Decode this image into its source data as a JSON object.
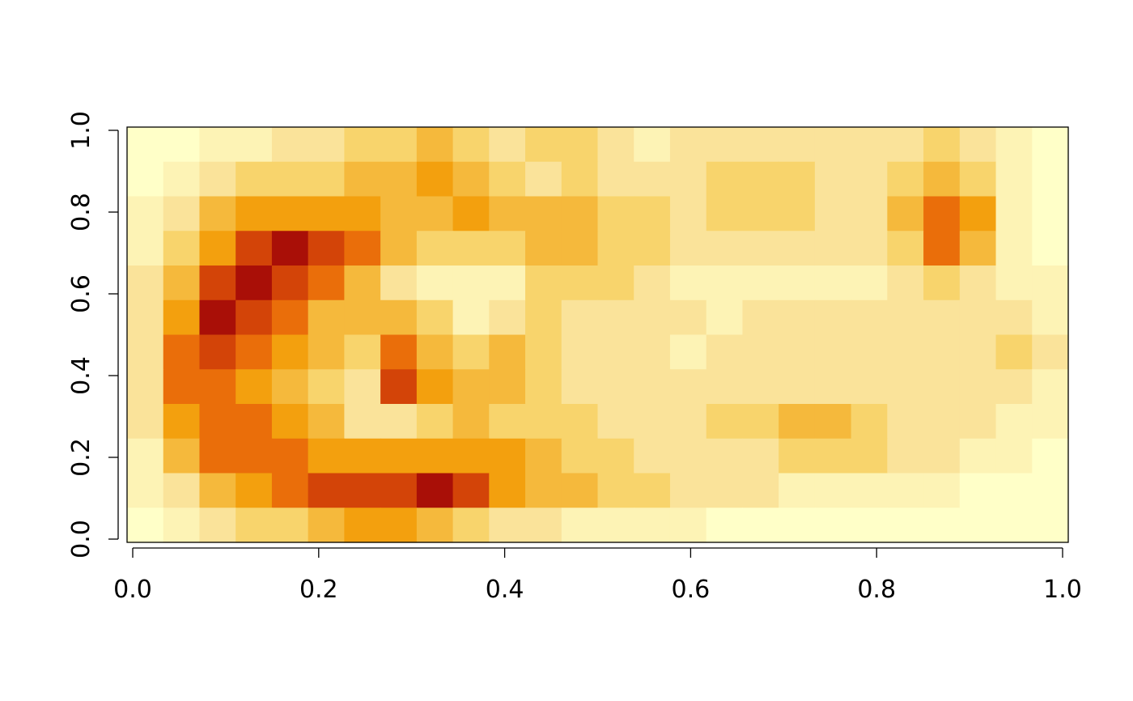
{
  "chart_data": {
    "type": "heatmap",
    "title": "",
    "xlabel": "",
    "ylabel": "",
    "xlim": [
      0,
      1
    ],
    "ylim": [
      0,
      1
    ],
    "x_ticks": [
      {
        "value": 0.0,
        "label": "0.0"
      },
      {
        "value": 0.2,
        "label": "0.2"
      },
      {
        "value": 0.4,
        "label": "0.4"
      },
      {
        "value": 0.6,
        "label": "0.6"
      },
      {
        "value": 0.8,
        "label": "0.8"
      },
      {
        "value": 1.0,
        "label": "1.0"
      }
    ],
    "y_ticks": [
      {
        "value": 0.0,
        "label": "0.0"
      },
      {
        "value": 0.2,
        "label": "0.2"
      },
      {
        "value": 0.4,
        "label": "0.4"
      },
      {
        "value": 0.6,
        "label": "0.6"
      },
      {
        "value": 0.8,
        "label": "0.8"
      },
      {
        "value": 1.0,
        "label": "1.0"
      }
    ],
    "colorscale": [
      "#FFFFC8",
      "#FDF3B5",
      "#FAE39A",
      "#F8D46C",
      "#F5B93C",
      "#F3A00E",
      "#EA6E0A",
      "#D34408",
      "#A90F07",
      "#7D0025"
    ],
    "value_range": [
      0,
      1
    ],
    "grid": false,
    "legend": "none",
    "nx": 26,
    "ny": 12,
    "values": [
      [
        0.05,
        0.05,
        0.1,
        0.15,
        0.2,
        0.25,
        0.3,
        0.35,
        0.4,
        0.3,
        0.25,
        0.3,
        0.3,
        0.2,
        0.15,
        0.2,
        0.2,
        0.2,
        0.2,
        0.25,
        0.25,
        0.25,
        0.3,
        0.25,
        0.1,
        0.05
      ],
      [
        0.05,
        0.1,
        0.2,
        0.3,
        0.3,
        0.3,
        0.4,
        0.45,
        0.5,
        0.45,
        0.3,
        0.25,
        0.3,
        0.25,
        0.2,
        0.2,
        0.3,
        0.35,
        0.3,
        0.25,
        0.25,
        0.35,
        0.4,
        0.3,
        0.1,
        0.05
      ],
      [
        0.1,
        0.2,
        0.4,
        0.5,
        0.5,
        0.55,
        0.55,
        0.45,
        0.45,
        0.5,
        0.45,
        0.4,
        0.4,
        0.35,
        0.3,
        0.25,
        0.35,
        0.3,
        0.35,
        0.25,
        0.2,
        0.4,
        0.6,
        0.5,
        0.15,
        0.05
      ],
      [
        0.15,
        0.35,
        0.55,
        0.7,
        0.8,
        0.7,
        0.6,
        0.4,
        0.3,
        0.3,
        0.35,
        0.45,
        0.45,
        0.35,
        0.3,
        0.2,
        0.2,
        0.2,
        0.2,
        0.2,
        0.25,
        0.3,
        0.65,
        0.4,
        0.1,
        0.05
      ],
      [
        0.2,
        0.45,
        0.7,
        0.85,
        0.7,
        0.6,
        0.45,
        0.25,
        0.15,
        0.1,
        0.15,
        0.35,
        0.35,
        0.35,
        0.2,
        0.15,
        0.1,
        0.15,
        0.15,
        0.15,
        0.15,
        0.25,
        0.3,
        0.2,
        0.1,
        0.1
      ],
      [
        0.25,
        0.55,
        0.8,
        0.75,
        0.6,
        0.45,
        0.4,
        0.4,
        0.3,
        0.15,
        0.2,
        0.3,
        0.25,
        0.25,
        0.2,
        0.2,
        0.15,
        0.25,
        0.25,
        0.2,
        0.2,
        0.2,
        0.2,
        0.2,
        0.2,
        0.15
      ],
      [
        0.25,
        0.6,
        0.7,
        0.6,
        0.5,
        0.4,
        0.3,
        0.6,
        0.4,
        0.35,
        0.45,
        0.35,
        0.25,
        0.25,
        0.2,
        0.15,
        0.2,
        0.2,
        0.2,
        0.2,
        0.2,
        0.2,
        0.2,
        0.25,
        0.35,
        0.25
      ],
      [
        0.25,
        0.6,
        0.65,
        0.55,
        0.45,
        0.3,
        0.2,
        0.75,
        0.5,
        0.45,
        0.4,
        0.3,
        0.25,
        0.25,
        0.25,
        0.2,
        0.2,
        0.25,
        0.25,
        0.2,
        0.2,
        0.25,
        0.25,
        0.25,
        0.2,
        0.15
      ],
      [
        0.2,
        0.55,
        0.65,
        0.6,
        0.5,
        0.4,
        0.25,
        0.25,
        0.3,
        0.4,
        0.35,
        0.3,
        0.3,
        0.25,
        0.2,
        0.25,
        0.3,
        0.3,
        0.4,
        0.4,
        0.3,
        0.25,
        0.2,
        0.2,
        0.1,
        0.1
      ],
      [
        0.15,
        0.4,
        0.6,
        0.65,
        0.6,
        0.55,
        0.55,
        0.55,
        0.5,
        0.5,
        0.55,
        0.4,
        0.35,
        0.3,
        0.25,
        0.2,
        0.2,
        0.25,
        0.35,
        0.35,
        0.3,
        0.25,
        0.2,
        0.15,
        0.1,
        0.05
      ],
      [
        0.1,
        0.25,
        0.4,
        0.55,
        0.65,
        0.7,
        0.7,
        0.75,
        0.8,
        0.7,
        0.55,
        0.45,
        0.4,
        0.35,
        0.3,
        0.25,
        0.2,
        0.2,
        0.15,
        0.15,
        0.15,
        0.1,
        0.1,
        0.05,
        0.05,
        0.05
      ],
      [
        0.05,
        0.1,
        0.2,
        0.3,
        0.35,
        0.45,
        0.5,
        0.5,
        0.4,
        0.3,
        0.25,
        0.2,
        0.15,
        0.1,
        0.1,
        0.1,
        0.05,
        0.05,
        0.05,
        0.05,
        0.05,
        0.05,
        0.05,
        0.05,
        0.05,
        0.05
      ]
    ]
  }
}
